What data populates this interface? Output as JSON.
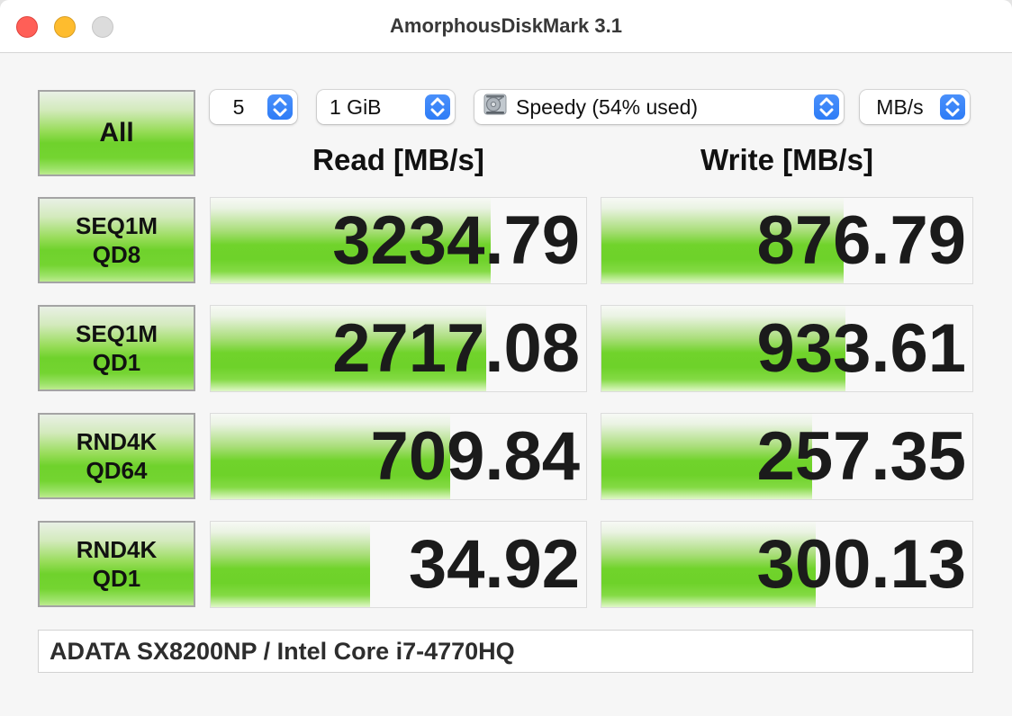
{
  "window": {
    "title": "AmorphousDiskMark 3.1",
    "controls": {
      "close": "close",
      "minimize": "minimize",
      "zoom": "zoom-disabled"
    }
  },
  "toolbar": {
    "all_button_label": "All",
    "trial_count": "5",
    "test_size": "1 GiB",
    "target_drive": "Speedy (54% used)",
    "unit": "MB/s"
  },
  "columns": {
    "read": "Read [MB/s]",
    "write": "Write [MB/s]"
  },
  "rows": [
    {
      "label_line1": "SEQ1M",
      "label_line2": "QD8",
      "read": {
        "value": "3234.79",
        "bar_pct": 74.6
      },
      "write": {
        "value": "876.79",
        "bar_pct": 65.3
      }
    },
    {
      "label_line1": "SEQ1M",
      "label_line2": "QD1",
      "read": {
        "value": "2717.08",
        "bar_pct": 73.4
      },
      "write": {
        "value": "933.61",
        "bar_pct": 65.8
      }
    },
    {
      "label_line1": "RND4K",
      "label_line2": "QD64",
      "read": {
        "value": "709.84",
        "bar_pct": 63.8
      },
      "write": {
        "value": "257.35",
        "bar_pct": 56.7
      }
    },
    {
      "label_line1": "RND4K",
      "label_line2": "QD1",
      "read": {
        "value": "34.92",
        "bar_pct": 42.5
      },
      "write": {
        "value": "300.13",
        "bar_pct": 57.7
      }
    }
  ],
  "footer": {
    "text": "ADATA SX8200NP / Intel Core i7-4770HQ"
  },
  "colors": {
    "bar_green": "#6fd22c",
    "stepper_blue": "#3b82f7",
    "traffic_red": "#ff5f57",
    "traffic_yellow": "#febc2e",
    "traffic_gray": "#dcdcdc",
    "cell_bg": "#f8f8f8",
    "window_bg": "#f6f6f6"
  }
}
